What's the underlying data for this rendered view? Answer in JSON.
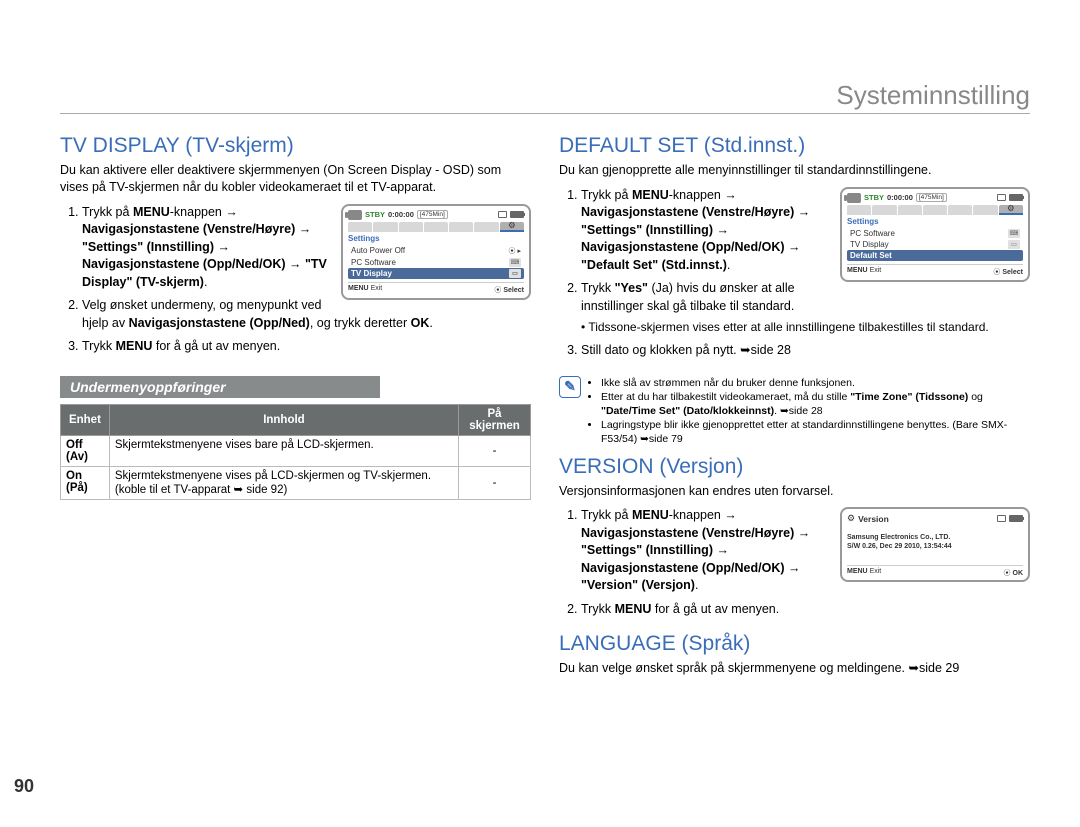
{
  "header": "Systeminnstilling",
  "page_number": "90",
  "left": {
    "tv_display": {
      "heading": "TV DISPLAY (TV-skjerm)",
      "intro": "Du kan aktivere eller deaktivere skjermmenyen (On Screen Display - OSD) som vises på TV-skjermen når du kobler videokameraet til et TV-apparat.",
      "step1_html": "Trykk på <b>MENU</b>-knappen → <b>Navigasjonstastene (Venstre/Høyre)</b> → <b>\"Settings\" (Innstilling)</b> → <b>Navigasjonstastene (Opp/Ned/OK)</b> → <b>\"TV Display\" (TV-skjerm)</b>.",
      "step2_html": "Velg ønsket undermeny, og menypunkt ved hjelp av <b>Navigasjonstastene (Opp/Ned)</b>, og trykk deretter <b>OK</b>.",
      "step3_html": "Trykk <b>MENU</b> for å gå ut av menyen.",
      "submenu_label": "Undermenyoppføringer",
      "table": {
        "headers": [
          "Enhet",
          "Innhold",
          "På skjermen"
        ],
        "rows": [
          [
            "Off (Av)",
            "Skjermtekstmenyene vises bare på LCD-skjermen.",
            "-"
          ],
          [
            "On (På)",
            "Skjermtekstmenyene vises på LCD-skjermen og TV-skjermen.(koble til et TV-apparat ➥ side 92)",
            "-"
          ]
        ]
      },
      "osd": {
        "stby": "STBY",
        "time": "0:00:00",
        "remain": "[475Min]",
        "settings_label": "Settings",
        "items": [
          "Auto Power Off",
          "PC Software",
          "TV Display"
        ],
        "selected_index": 2,
        "footer_left": "MENU Exit",
        "footer_right": "Select"
      }
    }
  },
  "right": {
    "default_set": {
      "heading": "DEFAULT SET (Std.innst.)",
      "intro": "Du kan gjenopprette alle menyinnstillinger til standardinnstillingene.",
      "step1_html": "Trykk på <b>MENU</b>-knappen → <b>Navigasjonstastene (Venstre/Høyre)</b> → <b>\"Settings\" (Innstilling)</b> → <b>Navigasjonstastene (Opp/Ned/OK)</b> → <b>\"Default Set\" (Std.innst.)</b>.",
      "step2_html": "Trykk <b>\"Yes\"</b> (Ja) hvis du ønsker at alle innstillinger skal gå tilbake til standard.",
      "step2_bullet": "Tidssone-skjermen vises etter at alle innstillingene tilbakestilles til standard.",
      "step3_html": "Still dato og klokken på nytt. ➥side 28",
      "osd": {
        "stby": "STBY",
        "time": "0:00:00",
        "remain": "[475Min]",
        "settings_label": "Settings",
        "items": [
          "PC Software",
          "TV Display",
          "Default Set"
        ],
        "selected_index": 2,
        "footer_left": "MENU Exit",
        "footer_right": "Select"
      },
      "notes": [
        "Ikke slå av strømmen når du bruker denne funksjonen.",
        "Etter at du har tilbakestilt videokameraet, må du stille <b>\"Time Zone\" (Tidssone)</b> og <b>\"Date/Time Set\" (Dato/klokkeinnst)</b>. ➥side 28",
        "Lagringstype blir ikke gjenopprettet etter at standardinnstillingene benyttes. (Bare SMX-F53/54) ➥side 79"
      ]
    },
    "version": {
      "heading": "VERSION (Versjon)",
      "intro": "Versjonsinformasjonen kan endres uten forvarsel.",
      "step1_html": "Trykk på <b>MENU</b>-knappen → <b>Navigasjonstastene (Venstre/Høyre)</b> → <b>\"Settings\" (Innstilling)</b> → <b>Navigasjonstastene (Opp/Ned/OK)</b> → <b>\"Version\" (Versjon)</b>.",
      "step2_html": "Trykk <b>MENU</b> for å gå ut av menyen.",
      "osd": {
        "title": "Version",
        "line1": "Samsung Electronics Co., LTD.",
        "line2": "S/W 0.26, Dec 29 2010, 13:54:44",
        "footer_left": "MENU Exit",
        "footer_right": "OK"
      }
    },
    "language": {
      "heading": "LANGUAGE (Språk)",
      "intro": "Du kan velge ønsket språk på skjermmenyene og meldingene. ➥side 29"
    }
  }
}
